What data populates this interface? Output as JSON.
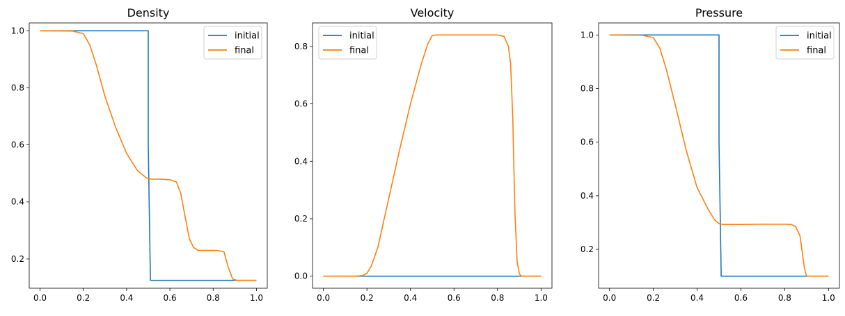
{
  "colors": {
    "initial": "#1f77b4",
    "final": "#ff7f0e"
  },
  "chart_data": [
    {
      "type": "line",
      "title": "Density",
      "xlabel": "",
      "ylabel": "",
      "xlim": [
        -0.05,
        1.05
      ],
      "ylim": [
        0.0975,
        1.0275
      ],
      "xticks": [
        "0.0",
        "0.2",
        "0.4",
        "0.6",
        "0.8",
        "1.0"
      ],
      "yticks": [
        "0.2",
        "0.4",
        "0.6",
        "0.8",
        "1.0"
      ],
      "legend": "top-right",
      "series": [
        {
          "name": "initial",
          "x": [
            0,
            0.5,
            0.5,
            0.51,
            1.0
          ],
          "y": [
            1.0,
            1.0,
            0.6,
            0.125,
            0.125
          ]
        },
        {
          "name": "final",
          "x": [
            0,
            0.15,
            0.2,
            0.23,
            0.26,
            0.3,
            0.35,
            0.4,
            0.45,
            0.49,
            0.51,
            0.55,
            0.6,
            0.63,
            0.65,
            0.67,
            0.69,
            0.71,
            0.73,
            0.77,
            0.82,
            0.85,
            0.87,
            0.89,
            0.91,
            1.0
          ],
          "y": [
            1.0,
            0.999,
            0.99,
            0.95,
            0.88,
            0.77,
            0.66,
            0.57,
            0.51,
            0.485,
            0.48,
            0.48,
            0.478,
            0.47,
            0.43,
            0.35,
            0.27,
            0.24,
            0.23,
            0.23,
            0.23,
            0.225,
            0.17,
            0.13,
            0.125,
            0.125
          ]
        }
      ]
    },
    {
      "type": "line",
      "title": "Velocity",
      "xlabel": "",
      "ylabel": "",
      "xlim": [
        -0.05,
        1.05
      ],
      "ylim": [
        -0.042,
        0.882
      ],
      "xticks": [
        "0.0",
        "0.2",
        "0.4",
        "0.6",
        "0.8",
        "1.0"
      ],
      "yticks": [
        "0.0",
        "0.2",
        "0.4",
        "0.6",
        "0.8"
      ],
      "legend": "top-left",
      "series": [
        {
          "name": "initial",
          "x": [
            0,
            1.0
          ],
          "y": [
            0,
            0
          ]
        },
        {
          "name": "final",
          "x": [
            0,
            0.15,
            0.18,
            0.2,
            0.22,
            0.25,
            0.3,
            0.35,
            0.4,
            0.45,
            0.48,
            0.5,
            0.52,
            0.6,
            0.7,
            0.8,
            0.83,
            0.85,
            0.86,
            0.87,
            0.875,
            0.88,
            0.89,
            0.9,
            0.905,
            0.91,
            0.93,
            1.0
          ],
          "y": [
            0,
            0,
            0.002,
            0.01,
            0.035,
            0.1,
            0.27,
            0.44,
            0.6,
            0.74,
            0.81,
            0.838,
            0.84,
            0.84,
            0.84,
            0.84,
            0.835,
            0.8,
            0.74,
            0.55,
            0.38,
            0.22,
            0.05,
            0.01,
            0.003,
            0,
            0,
            0
          ]
        }
      ]
    },
    {
      "type": "line",
      "title": "Pressure",
      "xlabel": "",
      "ylabel": "",
      "xlim": [
        -0.05,
        1.05
      ],
      "ylim": [
        0.055,
        1.045
      ],
      "xticks": [
        "0.0",
        "0.2",
        "0.4",
        "0.6",
        "0.8",
        "1.0"
      ],
      "yticks": [
        "0.2",
        "0.4",
        "0.6",
        "0.8",
        "1.0"
      ],
      "legend": "top-right",
      "series": [
        {
          "name": "initial",
          "x": [
            0,
            0.5,
            0.5,
            0.51,
            1.0
          ],
          "y": [
            1.0,
            1.0,
            0.6,
            0.1,
            0.1
          ]
        },
        {
          "name": "final",
          "x": [
            0,
            0.15,
            0.2,
            0.23,
            0.26,
            0.3,
            0.35,
            0.4,
            0.45,
            0.48,
            0.5,
            0.52,
            0.6,
            0.7,
            0.8,
            0.83,
            0.85,
            0.87,
            0.88,
            0.89,
            0.9,
            0.91,
            1.0
          ],
          "y": [
            1.0,
            0.999,
            0.99,
            0.95,
            0.87,
            0.74,
            0.57,
            0.43,
            0.35,
            0.31,
            0.296,
            0.293,
            0.293,
            0.294,
            0.294,
            0.293,
            0.285,
            0.25,
            0.19,
            0.13,
            0.1,
            0.1,
            0.1
          ]
        }
      ]
    }
  ]
}
